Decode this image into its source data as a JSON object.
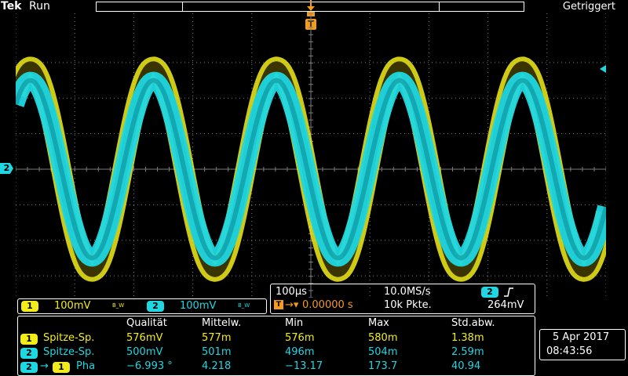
{
  "header": {
    "brand": "Tek",
    "run_state": "Run",
    "trigger_state": "Getriggert",
    "trigger_marker": "T"
  },
  "display": {
    "ch2_marker": "2",
    "colors": {
      "ch1": "#f2ed1a",
      "ch2": "#1fd7e2",
      "trigger": "#f59a1a",
      "graticule": "#7d7d7d"
    },
    "waveform": {
      "cycles": 4.8,
      "ch1_amplitude_v": 0.288,
      "ch2_amplitude_v": 0.25,
      "vertical_scale_v_per_div": 0.1
    }
  },
  "channels": {
    "ch1": {
      "badge": "1",
      "scale": "100mV",
      "bw_icon": "B_W"
    },
    "ch2": {
      "badge": "2",
      "scale": "100mV",
      "bw_icon": "B_W"
    }
  },
  "timebase": {
    "scale": "100µs",
    "sample_rate": "10.0MS/s",
    "position_icon": "T→",
    "position": "0.00000 s",
    "record_length": "10k Pkte.",
    "trigger_source_badge": "2",
    "trigger_slope_icon": "rising-edge-icon",
    "trigger_level": "264mV"
  },
  "measurements": {
    "headers": [
      "Qualität",
      "Mittelw.",
      "Min",
      "Max",
      "Std.abw."
    ],
    "rows": [
      {
        "badges": [
          "1"
        ],
        "arrow": "",
        "label": "Spitze-Sp.",
        "values": [
          "576mV",
          "577m",
          "576m",
          "580m",
          "1.38m"
        ]
      },
      {
        "badges": [
          "2"
        ],
        "arrow": "",
        "label": "Spitze-Sp.",
        "values": [
          "500mV",
          "501m",
          "496m",
          "504m",
          "2.59m"
        ]
      },
      {
        "badges": [
          "2",
          "1"
        ],
        "arrow": "→",
        "label": "Pha",
        "values": [
          "−6.993 °",
          "4.218",
          "−13.17",
          "173.7",
          "40.94"
        ]
      }
    ]
  },
  "datetime": {
    "date": "5 Apr 2017",
    "time": "08:43:56"
  }
}
